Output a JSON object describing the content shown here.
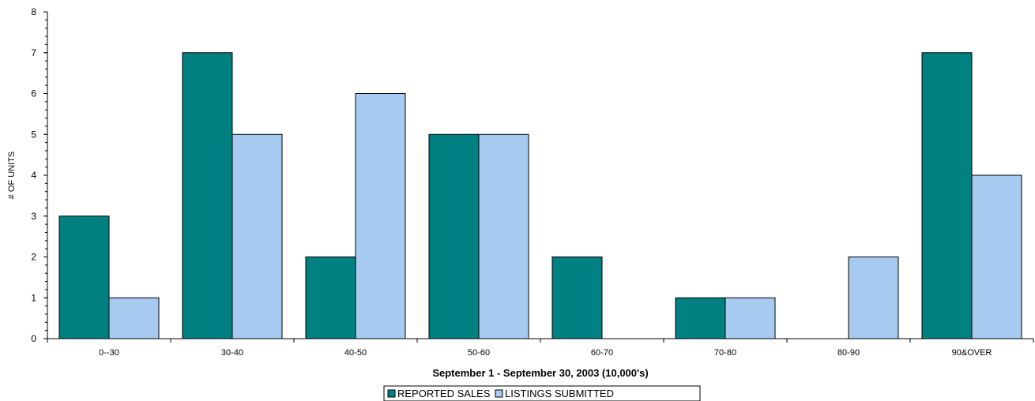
{
  "chart_data": {
    "type": "bar",
    "title": "",
    "xlabel": "September 1 - September 30, 2003 (10,000's)",
    "ylabel": "# OF UNITS",
    "ylim": [
      0,
      8
    ],
    "yticks": [
      0,
      1,
      2,
      3,
      4,
      5,
      6,
      7,
      8
    ],
    "grid": false,
    "legend_position": "bottom-center",
    "categories": [
      "0--30",
      "30-40",
      "40-50",
      "50-60",
      "60-70",
      "70-80",
      "80-90",
      "90&OVER"
    ],
    "series": [
      {
        "name": "REPORTED SALES",
        "color": "#008080",
        "values": [
          3,
          7,
          2,
          5,
          2,
          1,
          0,
          7
        ]
      },
      {
        "name": "LISTINGS SUBMITTED",
        "color": "#A6CAF0",
        "values": [
          1,
          5,
          6,
          5,
          0,
          1,
          2,
          4
        ]
      }
    ]
  }
}
